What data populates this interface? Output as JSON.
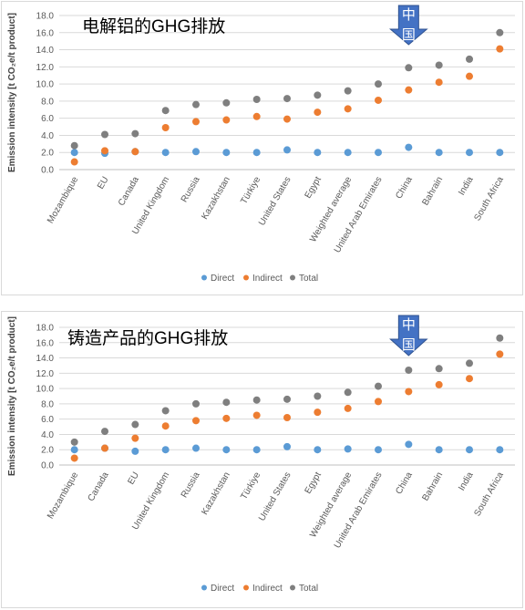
{
  "colors": {
    "direct": "#5b9bd5",
    "indirect": "#ed7d31",
    "total": "#7f7f7f",
    "arrow_fill": "#4472c4",
    "arrow_stroke": "#2f528f",
    "gridline": "#d9d9d9",
    "axis": "#bfbfbf"
  },
  "chart_data": [
    {
      "type": "scatter",
      "title": "电解铝的GHG排放",
      "ylabel": "Emission intensity [t CO₂e/t product]",
      "ylim": [
        0,
        18
      ],
      "yticks": [
        "0.0",
        "2.0",
        "4.0",
        "6.0",
        "8.0",
        "10.0",
        "12.0",
        "14.0",
        "16.0",
        "18.0"
      ],
      "grid": true,
      "legend_position": "bottom",
      "categories": [
        "Mozambique",
        "EU",
        "Canada",
        "United Kingdom",
        "Russia",
        "Kazakhstan",
        "Türkiye",
        "United States",
        "Egypt",
        "Weighted average",
        "United Arab Emirates",
        "China",
        "Bahrain",
        "India",
        "South Africa"
      ],
      "series": [
        {
          "name": "Direct",
          "values": [
            2.0,
            1.9,
            2.1,
            2.0,
            2.1,
            2.0,
            2.0,
            2.3,
            2.0,
            2.0,
            2.0,
            2.6,
            2.0,
            2.0,
            2.0
          ]
        },
        {
          "name": "Indirect",
          "values": [
            0.9,
            2.2,
            2.1,
            4.9,
            5.6,
            5.8,
            6.2,
            5.9,
            6.7,
            7.1,
            8.1,
            9.3,
            10.2,
            10.9,
            14.1
          ]
        },
        {
          "name": "Total",
          "values": [
            2.8,
            4.1,
            4.2,
            6.9,
            7.6,
            7.8,
            8.2,
            8.3,
            8.7,
            9.2,
            10.0,
            11.9,
            12.2,
            12.9,
            16.0
          ]
        }
      ],
      "annotation": {
        "label": "中国",
        "target": "China"
      }
    },
    {
      "type": "scatter",
      "title": "铸造产品的GHG排放",
      "ylabel": "Emission intensity [t CO₂e/t product]",
      "ylim": [
        0,
        18
      ],
      "yticks": [
        "0.0",
        "2.0",
        "4.0",
        "6.0",
        "8.0",
        "10.0",
        "12.0",
        "14.0",
        "16.0",
        "18.0"
      ],
      "grid": true,
      "legend_position": "bottom",
      "categories": [
        "Mozambique",
        "Canada",
        "EU",
        "United Kingdom",
        "Russia",
        "Kazakhstan",
        "Türkiye",
        "United States",
        "Egypt",
        "Weighted average",
        "United Arab Emirates",
        "China",
        "Bahrain",
        "India",
        "South Africa"
      ],
      "series": [
        {
          "name": "Direct",
          "values": [
            2.0,
            2.2,
            1.8,
            2.0,
            2.2,
            2.0,
            2.0,
            2.4,
            2.0,
            2.1,
            2.0,
            2.7,
            2.0,
            2.0,
            2.0
          ]
        },
        {
          "name": "Indirect",
          "values": [
            0.9,
            2.2,
            3.5,
            5.1,
            5.8,
            6.1,
            6.5,
            6.2,
            6.9,
            7.4,
            8.3,
            9.6,
            10.5,
            11.3,
            14.5
          ]
        },
        {
          "name": "Total",
          "values": [
            3.0,
            4.4,
            5.3,
            7.1,
            8.0,
            8.2,
            8.5,
            8.6,
            9.0,
            9.5,
            10.3,
            12.4,
            12.6,
            13.3,
            16.6
          ]
        }
      ],
      "annotation": {
        "label": "中国",
        "target": "China"
      }
    }
  ]
}
